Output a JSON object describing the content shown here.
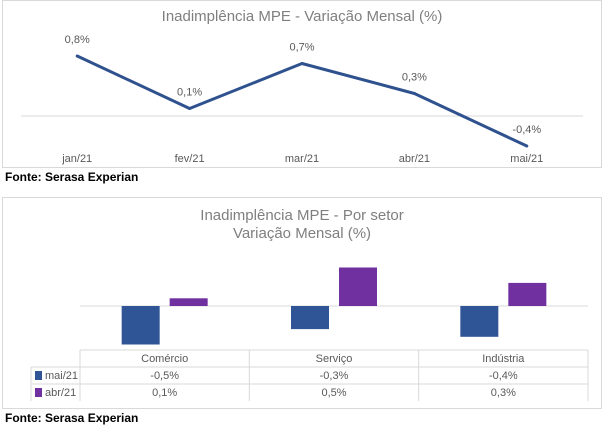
{
  "chart_data": [
    {
      "type": "line",
      "title": "Inadimplência MPE - Variação Mensal (%)",
      "categories": [
        "jan/21",
        "fev/21",
        "mar/21",
        "abr/21",
        "mai/21"
      ],
      "values": [
        0.8,
        0.1,
        0.7,
        0.3,
        -0.4
      ],
      "labels": [
        "0,8%",
        "0,1%",
        "0,7%",
        "0,3%",
        "-0,4%"
      ],
      "color": "#2f528f",
      "grid": false
    },
    {
      "type": "bar",
      "title_lines": [
        "Inadimplência MPE - Por setor",
        "Variação Mensal (%)"
      ],
      "categories": [
        "Comércio",
        "Serviço",
        "Indústria"
      ],
      "series": [
        {
          "name": "mai/21",
          "values": [
            -0.5,
            -0.3,
            -0.4
          ],
          "labels": [
            "-0,5%",
            "-0,3%",
            "-0,4%"
          ],
          "color": "#2f5597"
        },
        {
          "name": "abr/21",
          "values": [
            0.1,
            0.5,
            0.3
          ],
          "labels": [
            "0,1%",
            "0,5%",
            "0,3%"
          ],
          "color": "#7030a0"
        }
      ],
      "data_table": true
    }
  ],
  "source_text": "Fonte: Serasa Experian"
}
